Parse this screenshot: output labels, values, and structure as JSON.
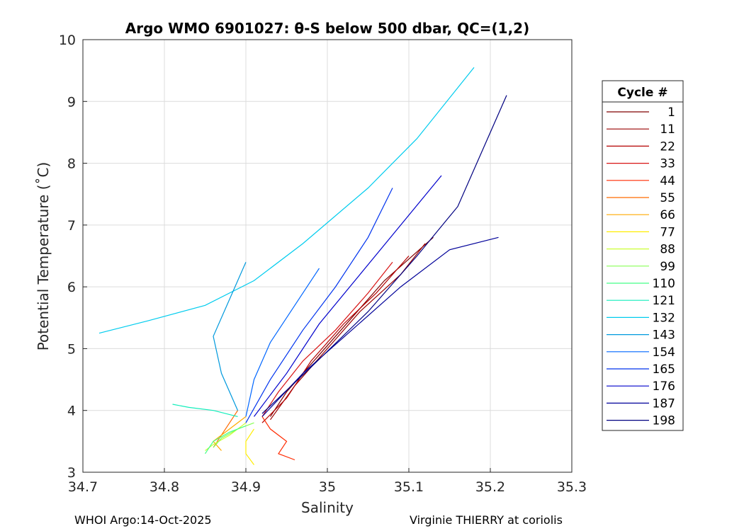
{
  "chart_data": {
    "type": "line",
    "title": "Argo WMO 6901027: θ-S below 500 dbar,  QC=(1,2)",
    "xlabel": "Salinity",
    "ylabel": "Potential Temperature (˚C)",
    "xlim": [
      34.7,
      35.3
    ],
    "ylim": [
      3,
      10
    ],
    "xticks": [
      "34.7",
      "34.8",
      "34.9",
      "35",
      "35.1",
      "35.2",
      "35.3"
    ],
    "yticks": [
      "3",
      "4",
      "5",
      "6",
      "7",
      "8",
      "9",
      "10"
    ],
    "grid": true,
    "legend": {
      "title": "Cycle #",
      "placement": "outside-right",
      "entries": [
        {
          "label": "1",
          "color": "#800000"
        },
        {
          "label": "11",
          "color": "#9a0000"
        },
        {
          "label": "22",
          "color": "#b40000"
        },
        {
          "label": "33",
          "color": "#d81414"
        },
        {
          "label": "44",
          "color": "#ff2a00"
        },
        {
          "label": "55",
          "color": "#ff6a00"
        },
        {
          "label": "66",
          "color": "#ffaa00"
        },
        {
          "label": "77",
          "color": "#ffee00"
        },
        {
          "label": "88",
          "color": "#ccff33"
        },
        {
          "label": "99",
          "color": "#88ff55"
        },
        {
          "label": "110",
          "color": "#44ff88"
        },
        {
          "label": "121",
          "color": "#11eebb"
        },
        {
          "label": "132",
          "color": "#00ccee"
        },
        {
          "label": "143",
          "color": "#0099dd"
        },
        {
          "label": "154",
          "color": "#0066ff"
        },
        {
          "label": "165",
          "color": "#0033ee"
        },
        {
          "label": "176",
          "color": "#0000cc"
        },
        {
          "label": "187",
          "color": "#000099"
        },
        {
          "label": "198",
          "color": "#000080"
        }
      ]
    },
    "series": [
      {
        "color": "#800000",
        "points": [
          [
            34.93,
            3.9
          ],
          [
            34.95,
            4.3
          ],
          [
            34.99,
            4.9
          ],
          [
            35.03,
            5.5
          ],
          [
            35.07,
            6.1
          ],
          [
            35.13,
            6.8
          ]
        ]
      },
      {
        "color": "#9a0000",
        "points": [
          [
            34.93,
            3.85
          ],
          [
            34.96,
            4.4
          ],
          [
            35.0,
            5.0
          ],
          [
            35.04,
            5.6
          ],
          [
            35.09,
            6.2
          ],
          [
            35.12,
            6.7
          ]
        ]
      },
      {
        "color": "#b40000",
        "points": [
          [
            34.92,
            3.8
          ],
          [
            34.95,
            4.2
          ],
          [
            34.98,
            4.8
          ],
          [
            35.02,
            5.4
          ],
          [
            35.06,
            5.9
          ],
          [
            35.1,
            6.5
          ]
        ]
      },
      {
        "color": "#d81414",
        "points": [
          [
            34.92,
            3.9
          ],
          [
            34.94,
            4.3
          ],
          [
            34.97,
            4.8
          ],
          [
            35.01,
            5.3
          ],
          [
            35.05,
            5.9
          ],
          [
            35.08,
            6.4
          ]
        ]
      },
      {
        "color": "#ff2a00",
        "points": [
          [
            34.92,
            3.9
          ],
          [
            34.93,
            3.7
          ],
          [
            34.95,
            3.5
          ],
          [
            34.94,
            3.3
          ],
          [
            34.96,
            3.2
          ]
        ]
      },
      {
        "color": "#ff6a00",
        "points": [
          [
            34.89,
            4.0
          ],
          [
            34.88,
            3.8
          ],
          [
            34.87,
            3.6
          ],
          [
            34.86,
            3.4
          ]
        ]
      },
      {
        "color": "#ffaa00",
        "points": [
          [
            34.9,
            3.9
          ],
          [
            34.88,
            3.7
          ],
          [
            34.86,
            3.5
          ],
          [
            34.87,
            3.35
          ]
        ]
      },
      {
        "color": "#ffee00",
        "points": [
          [
            34.91,
            3.7
          ],
          [
            34.9,
            3.5
          ],
          [
            34.9,
            3.3
          ],
          [
            34.91,
            3.12
          ]
        ]
      },
      {
        "color": "#ccff33",
        "points": [
          [
            34.9,
            3.8
          ],
          [
            34.88,
            3.6
          ],
          [
            34.86,
            3.45
          ],
          [
            34.85,
            3.35
          ]
        ]
      },
      {
        "color": "#88ff55",
        "points": [
          [
            34.91,
            3.8
          ],
          [
            34.89,
            3.7
          ],
          [
            34.87,
            3.55
          ],
          [
            34.86,
            3.4
          ]
        ]
      },
      {
        "color": "#44ff88",
        "points": [
          [
            34.9,
            3.75
          ],
          [
            34.88,
            3.65
          ],
          [
            34.86,
            3.5
          ],
          [
            34.85,
            3.3
          ]
        ]
      },
      {
        "color": "#11eebb",
        "points": [
          [
            34.89,
            3.9
          ],
          [
            34.86,
            4.0
          ],
          [
            34.83,
            4.05
          ],
          [
            34.81,
            4.1
          ]
        ]
      },
      {
        "color": "#00ccee",
        "points": [
          [
            34.72,
            5.25
          ],
          [
            34.78,
            5.45
          ],
          [
            34.85,
            5.7
          ],
          [
            34.91,
            6.1
          ],
          [
            34.97,
            6.7
          ],
          [
            35.05,
            7.6
          ],
          [
            35.11,
            8.4
          ],
          [
            35.18,
            9.55
          ]
        ]
      },
      {
        "color": "#0099dd",
        "points": [
          [
            34.89,
            4.0
          ],
          [
            34.87,
            4.6
          ],
          [
            34.86,
            5.2
          ],
          [
            34.88,
            5.8
          ],
          [
            34.9,
            6.4
          ]
        ]
      },
      {
        "color": "#0066ff",
        "points": [
          [
            34.9,
            3.9
          ],
          [
            34.91,
            4.5
          ],
          [
            34.93,
            5.1
          ],
          [
            34.96,
            5.7
          ],
          [
            34.99,
            6.3
          ]
        ]
      },
      {
        "color": "#0033ee",
        "points": [
          [
            34.9,
            3.8
          ],
          [
            34.93,
            4.5
          ],
          [
            34.97,
            5.3
          ],
          [
            35.01,
            6.0
          ],
          [
            35.05,
            6.8
          ],
          [
            35.08,
            7.6
          ]
        ]
      },
      {
        "color": "#0000cc",
        "points": [
          [
            34.91,
            3.9
          ],
          [
            34.95,
            4.6
          ],
          [
            34.99,
            5.4
          ],
          [
            35.04,
            6.2
          ],
          [
            35.09,
            7.0
          ],
          [
            35.14,
            7.8
          ]
        ]
      },
      {
        "color": "#000099",
        "points": [
          [
            34.92,
            3.9
          ],
          [
            34.97,
            4.6
          ],
          [
            35.03,
            5.3
          ],
          [
            35.09,
            6.0
          ],
          [
            35.15,
            6.6
          ],
          [
            35.21,
            6.8
          ]
        ]
      },
      {
        "color": "#000080",
        "points": [
          [
            34.92,
            3.95
          ],
          [
            34.98,
            4.7
          ],
          [
            35.05,
            5.6
          ],
          [
            35.11,
            6.5
          ],
          [
            35.16,
            7.3
          ],
          [
            35.19,
            8.2
          ],
          [
            35.22,
            9.1
          ]
        ]
      }
    ]
  },
  "footer": {
    "left": "WHOI Argo:14-Oct-2025",
    "right": "Virginie THIERRY at coriolis"
  }
}
